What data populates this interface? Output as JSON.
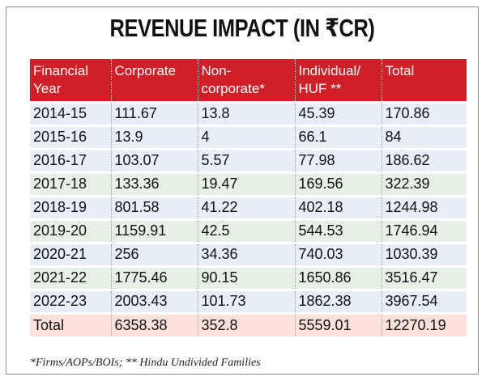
{
  "chart_data": {
    "type": "table",
    "title": "REVENUE IMPACT (IN ₹CR)",
    "columns": [
      "Financial Year",
      "Corporate",
      "Non-corporate*",
      "Individual/ HUF **",
      "Total"
    ],
    "rows": [
      {
        "year": "2014-15",
        "corporate": "111.67",
        "non_corporate": "13.8",
        "individual_huf": "45.39",
        "total": "170.86"
      },
      {
        "year": "2015-16",
        "corporate": "13.9",
        "non_corporate": "4",
        "individual_huf": "66.1",
        "total": "84"
      },
      {
        "year": "2016-17",
        "corporate": "103.07",
        "non_corporate": "5.57",
        "individual_huf": "77.98",
        "total": "186.62"
      },
      {
        "year": "2017-18",
        "corporate": "133.36",
        "non_corporate": "19.47",
        "individual_huf": "169.56",
        "total": "322.39"
      },
      {
        "year": "2018-19",
        "corporate": "801.58",
        "non_corporate": "41.22",
        "individual_huf": "402.18",
        "total": "1244.98"
      },
      {
        "year": "2019-20",
        "corporate": "1159.91",
        "non_corporate": "42.5",
        "individual_huf": "544.53",
        "total": "1746.94"
      },
      {
        "year": "2020-21",
        "corporate": "256",
        "non_corporate": "34.36",
        "individual_huf": "740.03",
        "total": "1030.39"
      },
      {
        "year": "2021-22",
        "corporate": "1775.46",
        "non_corporate": "90.15",
        "individual_huf": "1650.86",
        "total": "3516.47"
      },
      {
        "year": "2022-23",
        "corporate": "2003.43",
        "non_corporate": "101.73",
        "individual_huf": "1862.38",
        "total": "3967.54"
      }
    ],
    "totals": {
      "label": "Total",
      "corporate": "6358.38",
      "non_corporate": "352.8",
      "individual_huf": "5559.01",
      "total": "12270.19"
    },
    "footnote": "*Firms/AOPs/BOIs; ** Hindu Undivided Families"
  },
  "colors": {
    "header_bg": "#d01f26",
    "row_blue": "#e8eef8",
    "row_green": "#e6f0e4",
    "total_row": "#fde2dc"
  }
}
